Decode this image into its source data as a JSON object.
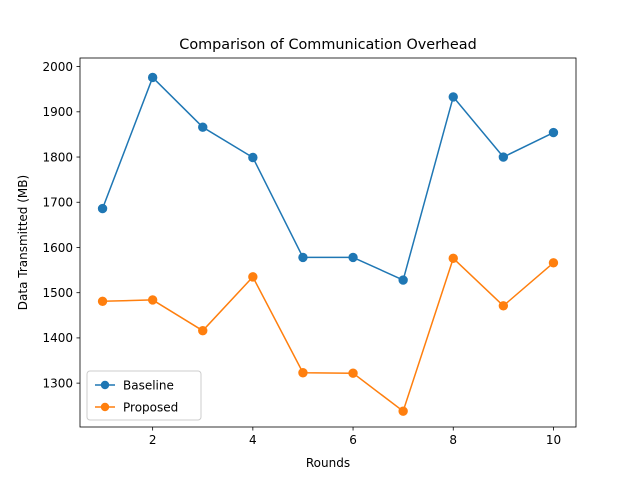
{
  "chart_data": {
    "type": "line",
    "title": "Comparison of Communication Overhead",
    "xlabel": "Rounds",
    "ylabel": "Data Transmitted (MB)",
    "x": [
      1,
      2,
      3,
      4,
      5,
      6,
      7,
      8,
      9,
      10
    ],
    "xlim": [
      0.55,
      10.45
    ],
    "ylim": [
      1203,
      2019
    ],
    "xticks": [
      2,
      4,
      6,
      8,
      10
    ],
    "yticks": [
      1300,
      1400,
      1500,
      1600,
      1700,
      1800,
      1900,
      2000
    ],
    "grid": false,
    "legend_position": "lower-left",
    "series": [
      {
        "name": "Baseline",
        "color": "#1f77b4",
        "marker": "circle",
        "values": [
          1686,
          1976,
          1866,
          1799,
          1578,
          1578,
          1528,
          1933,
          1800,
          1854
        ]
      },
      {
        "name": "Proposed",
        "color": "#ff7f0e",
        "marker": "circle",
        "values": [
          1481,
          1484,
          1416,
          1535,
          1323,
          1322,
          1238,
          1576,
          1471,
          1566
        ]
      }
    ]
  }
}
